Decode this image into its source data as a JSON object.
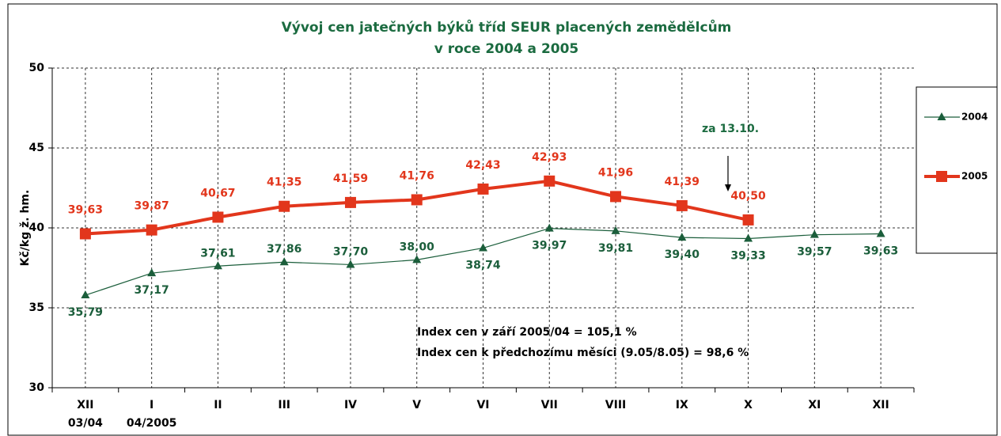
{
  "chart_data": {
    "type": "line",
    "title": "Vývoj cen jatečných býků tříd SEUR placených zemědělcům",
    "subtitle": "v roce 2004 a 2005",
    "y_label": "Kč/kg ž. hm.",
    "categories": [
      "XII",
      "I",
      "II",
      "III",
      "IV",
      "V",
      "VI",
      "VII",
      "VIII",
      "IX",
      "X",
      "XI",
      "XII"
    ],
    "x_sublabels": [
      "03/04",
      "04/2005"
    ],
    "series": [
      {
        "name": "2004",
        "color": "#1b5e3b",
        "marker": "triangle",
        "values": [
          35.79,
          37.17,
          37.61,
          37.86,
          37.7,
          38.0,
          38.74,
          39.97,
          39.81,
          39.4,
          39.33,
          39.57,
          39.63
        ],
        "value_labels": [
          "35,79",
          "37,17",
          "37,61",
          "37,86",
          "37,70",
          "38,00",
          "38,74",
          "39,97",
          "39,81",
          "39,40",
          "39,33",
          "39,57",
          "39,63"
        ]
      },
      {
        "name": "2005",
        "color": "#e2361c",
        "marker": "square",
        "values": [
          39.63,
          39.87,
          40.67,
          41.35,
          41.59,
          41.76,
          42.43,
          42.93,
          41.96,
          41.39,
          40.5,
          null,
          null
        ],
        "value_labels": [
          "39,63",
          "39,87",
          "40,67",
          "41,35",
          "41,59",
          "41,76",
          "42,43",
          "42,93",
          "41,96",
          "41,39",
          "40,50",
          null,
          null
        ]
      }
    ],
    "ylim": [
      30,
      50
    ],
    "yticks": [
      30,
      35,
      40,
      45,
      50
    ],
    "grid": true,
    "legend": "right",
    "annotations": [
      "za 13.10.",
      "Index cen v září 2005/04 = 105,1 %",
      "Index cen k předchozímu měsíci (9.05/8.05) = 98,6 %"
    ]
  }
}
